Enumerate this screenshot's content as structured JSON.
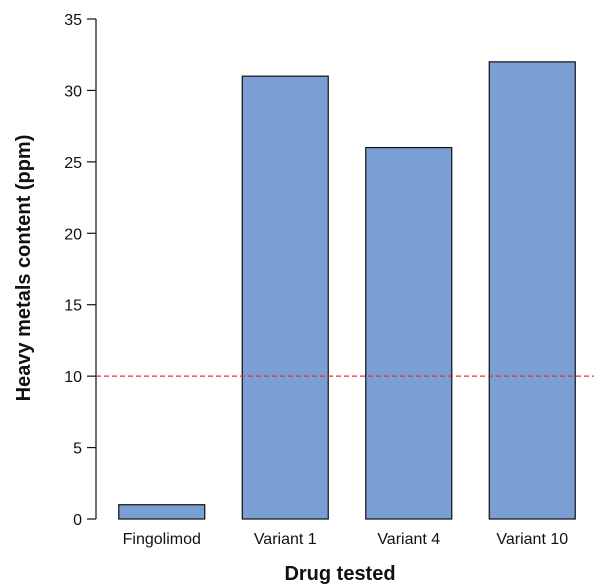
{
  "chart_data": {
    "type": "bar",
    "title": "",
    "xlabel": "Drug tested",
    "ylabel": "Heavy metals content (ppm)",
    "categories": [
      "Fingolimod",
      "Variant 1",
      "Variant 4",
      "Variant 10"
    ],
    "values": [
      1,
      31,
      26,
      32
    ],
    "ylim": [
      0,
      35
    ],
    "yticks": [
      0,
      5,
      10,
      15,
      20,
      25,
      30,
      35
    ],
    "ytick_labels": [
      "0",
      "5",
      "10",
      "15",
      "20",
      "25",
      "30",
      "35"
    ],
    "reference_line": {
      "value": 10,
      "style": "dashed",
      "color": "#e0303a"
    },
    "bar_color": "#7b9fd4",
    "bar_edge_color": "#111111",
    "grid": false,
    "legend": "none"
  }
}
